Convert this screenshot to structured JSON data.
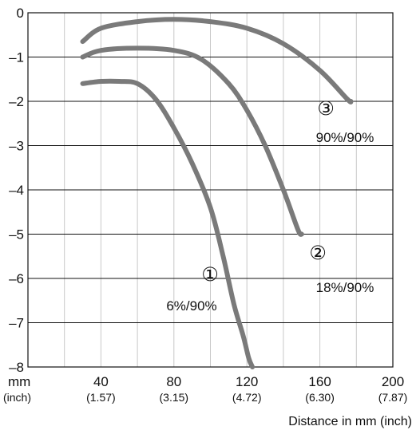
{
  "chart_data": {
    "type": "line",
    "xlabel": "Distance in mm (inch)",
    "xlim": [
      0,
      200
    ],
    "ylim": [
      -8,
      0
    ],
    "x_unit_labels": {
      "primary": "mm",
      "secondary": "(inch)"
    },
    "x_ticks": [
      {
        "value": 40,
        "label": "40",
        "sublabel": "(1.57)"
      },
      {
        "value": 80,
        "label": "80",
        "sublabel": "(3.15)"
      },
      {
        "value": 120,
        "label": "120",
        "sublabel": "(4.72)"
      },
      {
        "value": 160,
        "label": "160",
        "sublabel": "(6.30)"
      },
      {
        "value": 200,
        "label": "200",
        "sublabel": "(7.87)"
      }
    ],
    "y_ticks": [
      {
        "value": 0,
        "label": "0"
      },
      {
        "value": -1,
        "label": "–1"
      },
      {
        "value": -2,
        "label": "–2"
      },
      {
        "value": -3,
        "label": "–3"
      },
      {
        "value": -4,
        "label": "–4"
      },
      {
        "value": -5,
        "label": "–5"
      },
      {
        "value": -6,
        "label": "–6"
      },
      {
        "value": -7,
        "label": "–7"
      },
      {
        "value": -8,
        "label": "–8"
      }
    ],
    "grid": true,
    "series": [
      {
        "marker": "①",
        "name": "6%/90%",
        "color": "#7a7a7a",
        "points": [
          [
            30,
            -1.6
          ],
          [
            40,
            -1.55
          ],
          [
            50,
            -1.55
          ],
          [
            60,
            -1.6
          ],
          [
            70,
            -1.95
          ],
          [
            80,
            -2.6
          ],
          [
            90,
            -3.4
          ],
          [
            100,
            -4.4
          ],
          [
            107,
            -5.5
          ],
          [
            113,
            -6.6
          ],
          [
            118,
            -7.3
          ],
          [
            121,
            -7.8
          ],
          [
            123,
            -8.0
          ]
        ]
      },
      {
        "marker": "②",
        "name": "18%/90%",
        "color": "#7a7a7a",
        "points": [
          [
            30,
            -1.0
          ],
          [
            40,
            -0.85
          ],
          [
            60,
            -0.8
          ],
          [
            80,
            -0.85
          ],
          [
            95,
            -1.05
          ],
          [
            110,
            -1.6
          ],
          [
            120,
            -2.2
          ],
          [
            130,
            -3.0
          ],
          [
            140,
            -4.0
          ],
          [
            148,
            -4.9
          ],
          [
            150,
            -5.0
          ]
        ]
      },
      {
        "marker": "③",
        "name": "90%/90%",
        "color": "#7a7a7a",
        "points": [
          [
            30,
            -0.65
          ],
          [
            40,
            -0.35
          ],
          [
            60,
            -0.2
          ],
          [
            80,
            -0.15
          ],
          [
            100,
            -0.2
          ],
          [
            120,
            -0.35
          ],
          [
            140,
            -0.7
          ],
          [
            160,
            -1.3
          ],
          [
            175,
            -1.95
          ],
          [
            177,
            -2.0
          ]
        ]
      }
    ]
  }
}
